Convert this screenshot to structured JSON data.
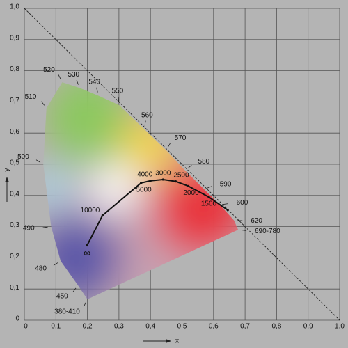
{
  "chart_data": {
    "type": "chromaticity",
    "x_label": "x",
    "y_label": "y",
    "xlim": [
      0,
      1
    ],
    "ylim": [
      0,
      1
    ],
    "xticks": [
      0,
      {
        "value": 0.1,
        "label": "0,1"
      },
      {
        "value": 0.2,
        "label": "0,2"
      },
      {
        "value": 0.3,
        "label": "0,3"
      },
      {
        "value": 0.4,
        "label": "0,4"
      },
      {
        "value": 0.5,
        "label": "0,5"
      },
      {
        "value": 0.6,
        "label": "0,6"
      },
      {
        "value": 0.7,
        "label": "0,7"
      },
      {
        "value": 0.8,
        "label": "0,8"
      },
      {
        "value": 0.9,
        "label": "0,9"
      },
      {
        "value": 1,
        "label": "1,0"
      }
    ],
    "yticks": [
      0,
      {
        "value": 0.1,
        "label": "0,1"
      },
      {
        "value": 0.2,
        "label": "0,2"
      },
      {
        "value": 0.3,
        "label": "0,3"
      },
      {
        "value": 0.4,
        "label": "0,4"
      },
      {
        "value": 0.5,
        "label": "0,5"
      },
      {
        "value": 0.6,
        "label": "0,6"
      },
      {
        "value": 0.7,
        "label": "0,7"
      },
      {
        "value": 0.8,
        "label": "0,8"
      },
      {
        "value": 0.9,
        "label": "0,9"
      },
      {
        "value": 1,
        "label": "1,0"
      }
    ],
    "grid": true,
    "spectral_locus": {
      "labels": [
        "380-410",
        "450",
        "480",
        "490",
        "500",
        "510",
        "520",
        "530",
        "540",
        "550",
        "560",
        "570",
        "580",
        "590",
        "600",
        "620",
        "690-780"
      ],
      "x": [
        0.2,
        0.17,
        0.115,
        0.085,
        0.06,
        0.07,
        0.12,
        0.175,
        0.235,
        0.3,
        0.38,
        0.45,
        0.51,
        0.57,
        0.62,
        0.665,
        0.678
      ],
      "y": [
        0.067,
        0.112,
        0.19,
        0.3,
        0.5,
        0.68,
        0.763,
        0.745,
        0.72,
        0.69,
        0.613,
        0.545,
        0.48,
        0.42,
        0.37,
        0.32,
        0.29
      ]
    },
    "planckian_locus": {
      "labels": [
        "∞",
        "10000",
        "5000",
        "4000",
        "3000",
        "2500",
        "2000",
        "1500",
        null
      ],
      "x": [
        0.199,
        0.248,
        0.37,
        0.4,
        0.44,
        0.48,
        0.52,
        0.585,
        0.645
      ],
      "y": [
        0.24,
        0.336,
        0.44,
        0.447,
        0.451,
        0.445,
        0.43,
        0.395,
        0.353
      ]
    }
  }
}
